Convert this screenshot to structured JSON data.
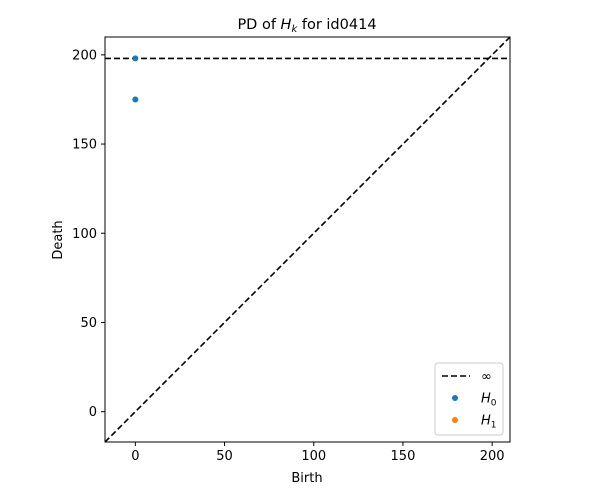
{
  "chart_data": {
    "type": "scatter",
    "title_prefix": "PD of ",
    "title_symbol": "H",
    "title_symbol_sub": "k",
    "title_suffix": " for id0414",
    "xlabel": "Birth",
    "ylabel": "Death",
    "xlim": [
      -17,
      210
    ],
    "ylim": [
      -17,
      210
    ],
    "xticks": [
      0,
      50,
      100,
      150,
      200
    ],
    "yticks": [
      0,
      50,
      100,
      150,
      200
    ],
    "infinity_level": 198,
    "legend_position": "lower-right",
    "legend": [
      {
        "kind": "line",
        "label": "∞",
        "color": "#000000"
      },
      {
        "kind": "point",
        "symbol": "H",
        "sub": "0",
        "color": "#1f77b4"
      },
      {
        "kind": "point",
        "symbol": "H",
        "sub": "1",
        "color": "#ff7f0e"
      }
    ],
    "series": [
      {
        "name": "H0",
        "color": "#1f77b4",
        "points": [
          [
            0,
            198
          ],
          [
            0,
            175
          ]
        ]
      },
      {
        "name": "H1",
        "color": "#ff7f0e",
        "points": []
      }
    ]
  }
}
